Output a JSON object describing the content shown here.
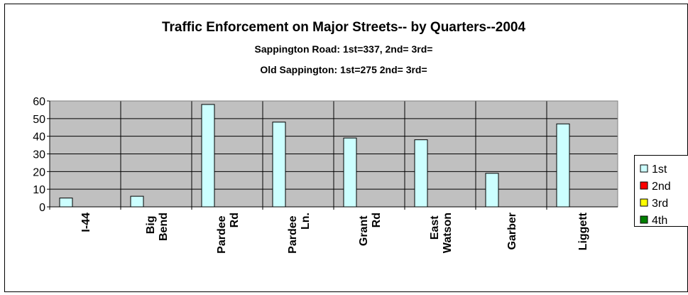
{
  "chart_data": {
    "type": "bar",
    "title": "Traffic Enforcement on Major Streets-- by Quarters--2004",
    "subtitle": [
      "Sappington Road: 1st=337, 2nd=  3rd=",
      "Old Sappington: 1st=275  2nd=  3rd="
    ],
    "categories": [
      "I-44",
      "Big Bend",
      "Pardee Rd",
      "Pardee Ln.",
      "Grant Rd",
      "East Watson",
      "Garber",
      "Liggett"
    ],
    "series": [
      {
        "name": "1st",
        "color": "#ccffff",
        "values": [
          5,
          6,
          58,
          48,
          39,
          38,
          19,
          47
        ]
      },
      {
        "name": "2nd",
        "color": "#ff0000",
        "values": [
          null,
          null,
          null,
          null,
          null,
          null,
          null,
          null
        ]
      },
      {
        "name": "3rd",
        "color": "#ffff00",
        "values": [
          null,
          null,
          null,
          null,
          null,
          null,
          null,
          null
        ]
      },
      {
        "name": "4th",
        "color": "#008000",
        "values": [
          null,
          null,
          null,
          null,
          null,
          null,
          null,
          null
        ]
      }
    ],
    "ylim": [
      0,
      60
    ],
    "yticks": [
      0,
      10,
      20,
      30,
      40,
      50,
      60
    ],
    "grid": true,
    "legend": "right"
  }
}
